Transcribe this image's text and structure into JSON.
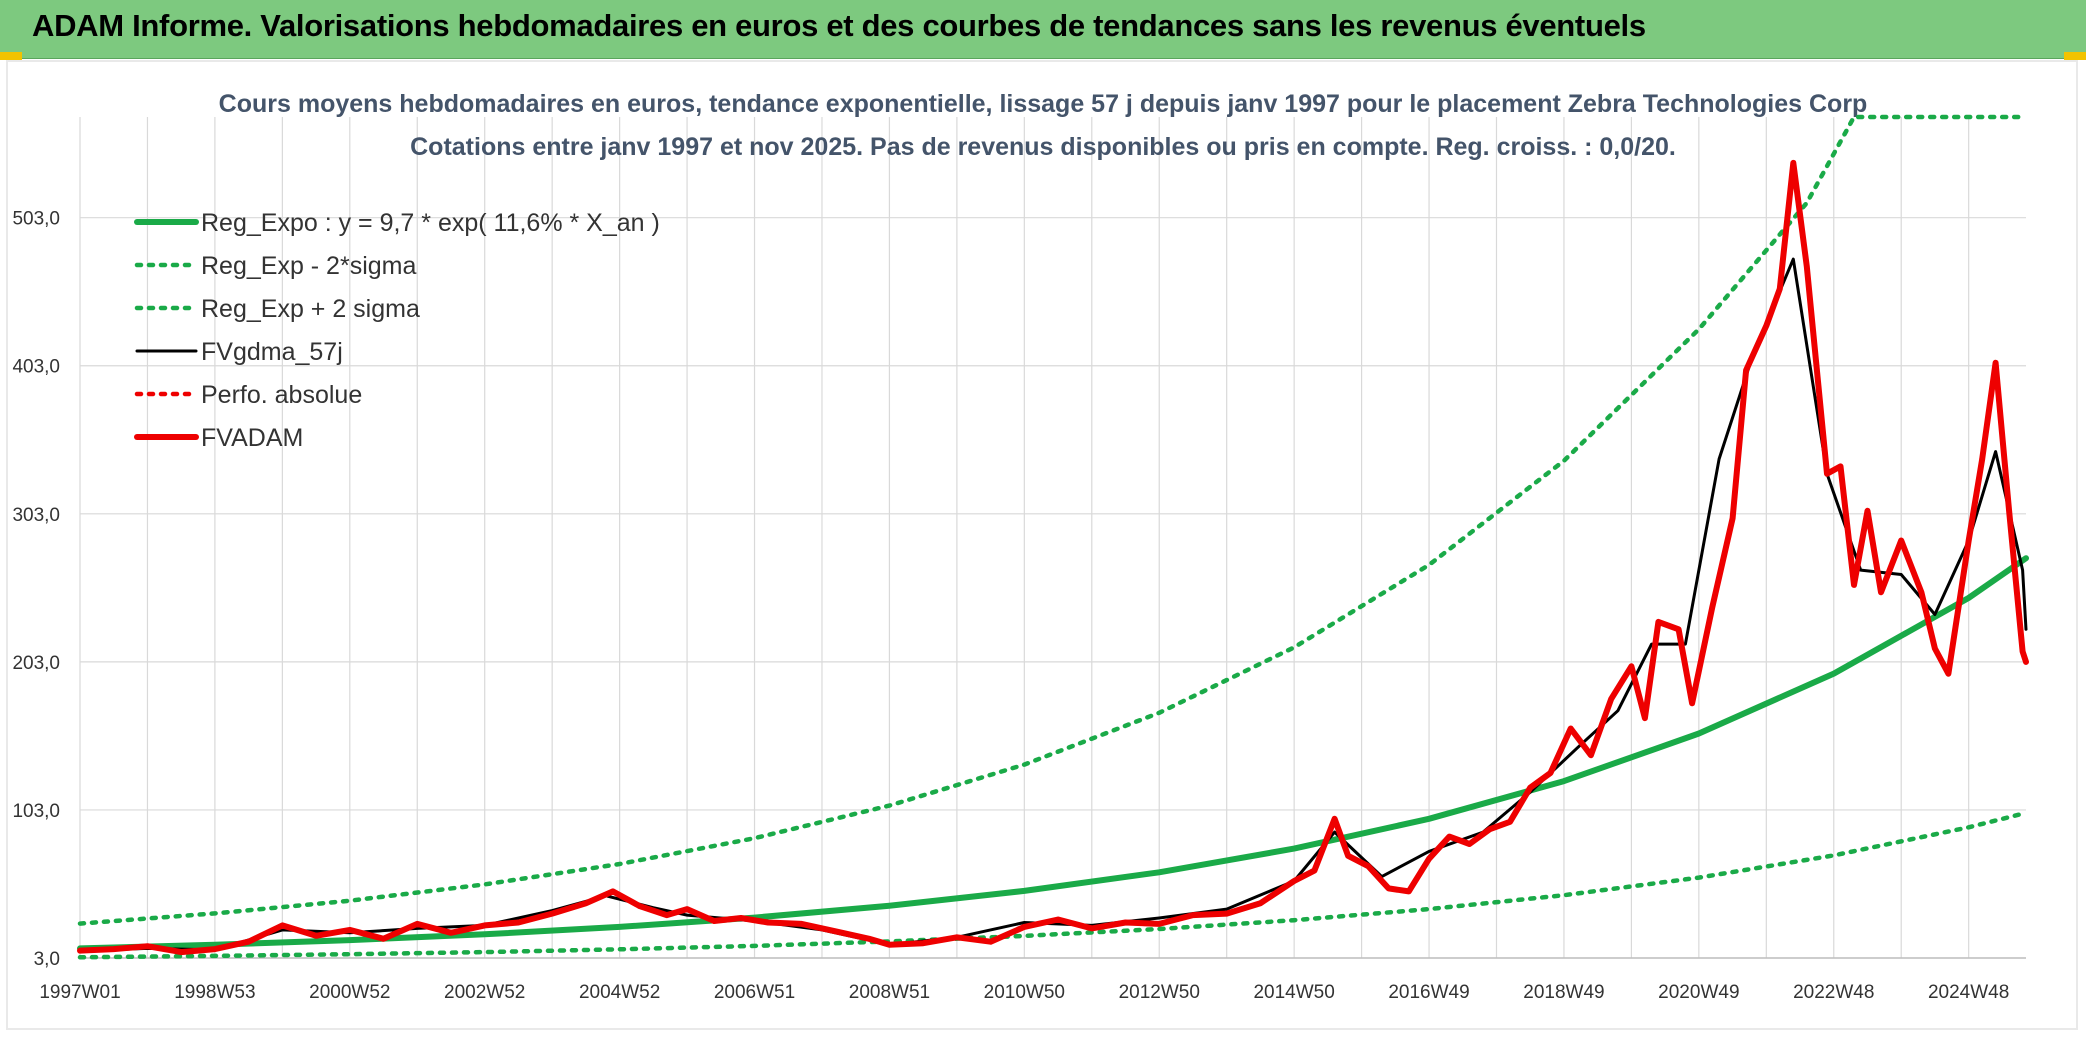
{
  "header": {
    "title": "ADAM Informe. Valorisations hebdomadaires en euros et des courbes de tendances sans les revenus éventuels"
  },
  "colors": {
    "header_bg": "#7dc97f",
    "trend": "#1aaa48",
    "price": "#ee0000",
    "smooth": "#000000",
    "grid": "#d9d9d9"
  },
  "chart_data": {
    "type": "line",
    "title": "Cours moyens hebdomadaires en euros, tendance exponentielle, lissage 57 j depuis janv 1997 pour le placement Zebra Technologies Corp",
    "subtitle": "Cotations entre janv 1997 et nov 2025. Pas de revenus disponibles ou pris en compte. Reg. croiss. : 0,0/20.",
    "xlabel": "",
    "ylabel": "",
    "ylim": [
      3.0,
      571.0
    ],
    "xlim": [
      1997.0,
      2025.85
    ],
    "grid": true,
    "legend_position": "top-left",
    "x_ticks": [
      {
        "label": "1997W01",
        "x": 1997.0
      },
      {
        "label": "1998W53",
        "x": 1999.0
      },
      {
        "label": "2000W52",
        "x": 2001.0
      },
      {
        "label": "2002W52",
        "x": 2003.0
      },
      {
        "label": "2004W52",
        "x": 2005.0
      },
      {
        "label": "2006W51",
        "x": 2007.0
      },
      {
        "label": "2008W51",
        "x": 2009.0
      },
      {
        "label": "2010W50",
        "x": 2011.0
      },
      {
        "label": "2012W50",
        "x": 2013.0
      },
      {
        "label": "2014W50",
        "x": 2015.0
      },
      {
        "label": "2016W49",
        "x": 2017.0
      },
      {
        "label": "2018W49",
        "x": 2019.0
      },
      {
        "label": "2020W49",
        "x": 2021.0
      },
      {
        "label": "2022W48",
        "x": 2023.0
      },
      {
        "label": "2024W48",
        "x": 2025.0
      }
    ],
    "y_ticks": [
      {
        "label": "3,0",
        "y": 3.0
      },
      {
        "label": "103,0",
        "y": 103.0
      },
      {
        "label": "203,0",
        "y": 203.0
      },
      {
        "label": "303,0",
        "y": 303.0
      },
      {
        "label": "403,0",
        "y": 403.0
      },
      {
        "label": "503,0",
        "y": 503.0
      }
    ],
    "series": [
      {
        "name": "Reg_Expo : y = 9,7 * exp( 11,6% *  X_an )",
        "style": "solid-thick",
        "color": "#1aaa48",
        "points": [
          [
            1997.0,
            9.5
          ],
          [
            1999.0,
            12.0
          ],
          [
            2001.0,
            15.1
          ],
          [
            2003.0,
            19.0
          ],
          [
            2005.0,
            24.0
          ],
          [
            2007.0,
            30.3
          ],
          [
            2009.0,
            38.3
          ],
          [
            2011.0,
            48.3
          ],
          [
            2013.0,
            60.9
          ],
          [
            2015.0,
            76.9
          ],
          [
            2017.0,
            97.0
          ],
          [
            2019.0,
            122.5
          ],
          [
            2021.0,
            154.6
          ],
          [
            2023.0,
            195.1
          ],
          [
            2025.0,
            246.2
          ],
          [
            2025.85,
            273.0
          ]
        ]
      },
      {
        "name": "Reg_Exp - 2*sigma",
        "style": "dotted",
        "color": "#1aaa48",
        "points": [
          [
            1997.0,
            3.5
          ],
          [
            1999.0,
            4.4
          ],
          [
            2001.0,
            5.6
          ],
          [
            2003.0,
            7.0
          ],
          [
            2005.0,
            8.9
          ],
          [
            2007.0,
            11.2
          ],
          [
            2009.0,
            14.2
          ],
          [
            2011.0,
            17.9
          ],
          [
            2013.0,
            22.6
          ],
          [
            2015.0,
            28.5
          ],
          [
            2017.0,
            36.0
          ],
          [
            2019.0,
            45.4
          ],
          [
            2021.0,
            57.3
          ],
          [
            2023.0,
            72.3
          ],
          [
            2025.0,
            91.3
          ],
          [
            2025.85,
            101.0
          ]
        ]
      },
      {
        "name": "Reg_Exp + 2 sigma",
        "style": "dotted",
        "color": "#1aaa48",
        "points": [
          [
            1997.0,
            26.2
          ],
          [
            1999.0,
            33.1
          ],
          [
            2001.0,
            41.7
          ],
          [
            2003.0,
            52.7
          ],
          [
            2005.0,
            66.5
          ],
          [
            2007.0,
            83.9
          ],
          [
            2009.0,
            105.9
          ],
          [
            2011.0,
            133.6
          ],
          [
            2013.0,
            168.6
          ],
          [
            2015.0,
            212.8
          ],
          [
            2017.0,
            268.5
          ],
          [
            2019.0,
            338.9
          ],
          [
            2021.0,
            427.7
          ],
          [
            2022.6,
            513.0
          ],
          [
            2023.3,
            571.0
          ],
          [
            2025.85,
            571.0
          ]
        ]
      },
      {
        "name": "FVgdma_57j",
        "style": "solid",
        "color": "#000000",
        "points": [
          [
            1997.0,
            8.0
          ],
          [
            1998.0,
            9.5
          ],
          [
            1999.0,
            8.5
          ],
          [
            2000.0,
            22.0
          ],
          [
            2001.0,
            20.0
          ],
          [
            2002.0,
            23.0
          ],
          [
            2003.0,
            25.0
          ],
          [
            2004.0,
            35.0
          ],
          [
            2004.8,
            45.0
          ],
          [
            2005.5,
            37.0
          ],
          [
            2006.0,
            32.0
          ],
          [
            2007.0,
            28.0
          ],
          [
            2008.0,
            22.0
          ],
          [
            2009.0,
            12.0
          ],
          [
            2010.0,
            17.0
          ],
          [
            2011.0,
            27.0
          ],
          [
            2012.0,
            25.0
          ],
          [
            2013.0,
            30.0
          ],
          [
            2014.0,
            36.0
          ],
          [
            2015.0,
            55.0
          ],
          [
            2015.6,
            88.0
          ],
          [
            2016.3,
            58.0
          ],
          [
            2017.0,
            75.0
          ],
          [
            2017.8,
            88.0
          ],
          [
            2018.5,
            115.0
          ],
          [
            2019.2,
            145.0
          ],
          [
            2019.8,
            170.0
          ],
          [
            2020.3,
            215.0
          ],
          [
            2020.8,
            215.0
          ],
          [
            2021.3,
            340.0
          ],
          [
            2021.8,
            410.0
          ],
          [
            2022.4,
            475.0
          ],
          [
            2022.9,
            330.0
          ],
          [
            2023.4,
            265.0
          ],
          [
            2024.0,
            262.0
          ],
          [
            2024.5,
            235.0
          ],
          [
            2025.0,
            285.0
          ],
          [
            2025.4,
            345.0
          ],
          [
            2025.8,
            265.0
          ],
          [
            2026.6,
            225.0
          ]
        ]
      },
      {
        "name": "Perfo. absolue",
        "style": "dotted",
        "color": "#ee0000",
        "points": []
      },
      {
        "name": "FVADAM",
        "style": "solid-thick",
        "color": "#ee0000",
        "points": [
          [
            1997.0,
            8.0
          ],
          [
            1997.5,
            9.0
          ],
          [
            1998.0,
            11.0
          ],
          [
            1998.5,
            7.0
          ],
          [
            1999.0,
            9.0
          ],
          [
            1999.5,
            14.0
          ],
          [
            2000.0,
            25.0
          ],
          [
            2000.5,
            18.0
          ],
          [
            2001.0,
            22.0
          ],
          [
            2001.5,
            16.0
          ],
          [
            2002.0,
            26.0
          ],
          [
            2002.5,
            20.0
          ],
          [
            2003.0,
            25.0
          ],
          [
            2003.5,
            27.0
          ],
          [
            2004.0,
            33.0
          ],
          [
            2004.5,
            40.0
          ],
          [
            2004.9,
            48.0
          ],
          [
            2005.3,
            38.0
          ],
          [
            2005.7,
            32.0
          ],
          [
            2006.0,
            36.0
          ],
          [
            2006.4,
            28.0
          ],
          [
            2006.8,
            30.0
          ],
          [
            2007.2,
            27.0
          ],
          [
            2007.7,
            26.0
          ],
          [
            2008.2,
            21.0
          ],
          [
            2008.7,
            16.0
          ],
          [
            2009.0,
            12.0
          ],
          [
            2009.5,
            13.0
          ],
          [
            2010.0,
            17.0
          ],
          [
            2010.5,
            14.0
          ],
          [
            2011.0,
            24.0
          ],
          [
            2011.5,
            29.0
          ],
          [
            2012.0,
            23.0
          ],
          [
            2012.5,
            27.0
          ],
          [
            2013.0,
            26.0
          ],
          [
            2013.5,
            32.0
          ],
          [
            2014.0,
            33.0
          ],
          [
            2014.5,
            40.0
          ],
          [
            2015.0,
            55.0
          ],
          [
            2015.3,
            62.0
          ],
          [
            2015.6,
            97.0
          ],
          [
            2015.8,
            72.0
          ],
          [
            2016.1,
            65.0
          ],
          [
            2016.4,
            50.0
          ],
          [
            2016.7,
            48.0
          ],
          [
            2017.0,
            70.0
          ],
          [
            2017.3,
            85.0
          ],
          [
            2017.6,
            80.0
          ],
          [
            2017.9,
            90.0
          ],
          [
            2018.2,
            95.0
          ],
          [
            2018.5,
            118.0
          ],
          [
            2018.8,
            128.0
          ],
          [
            2019.1,
            158.0
          ],
          [
            2019.4,
            140.0
          ],
          [
            2019.7,
            178.0
          ],
          [
            2020.0,
            200.0
          ],
          [
            2020.2,
            165.0
          ],
          [
            2020.4,
            230.0
          ],
          [
            2020.7,
            225.0
          ],
          [
            2020.9,
            175.0
          ],
          [
            2021.2,
            240.0
          ],
          [
            2021.5,
            300.0
          ],
          [
            2021.7,
            400.0
          ],
          [
            2022.0,
            430.0
          ],
          [
            2022.2,
            455.0
          ],
          [
            2022.4,
            540.0
          ],
          [
            2022.6,
            470.0
          ],
          [
            2022.9,
            330.0
          ],
          [
            2023.1,
            335.0
          ],
          [
            2023.3,
            255.0
          ],
          [
            2023.5,
            305.0
          ],
          [
            2023.7,
            250.0
          ],
          [
            2024.0,
            285.0
          ],
          [
            2024.3,
            250.0
          ],
          [
            2024.5,
            212.0
          ],
          [
            2024.7,
            195.0
          ],
          [
            2025.0,
            285.0
          ],
          [
            2025.2,
            340.0
          ],
          [
            2025.4,
            405.0
          ],
          [
            2025.6,
            305.0
          ],
          [
            2025.8,
            210.0
          ],
          [
            2025.85,
            203.0
          ]
        ]
      }
    ]
  }
}
